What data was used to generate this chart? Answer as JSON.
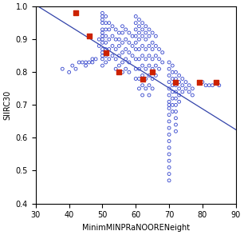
{
  "xlabel": "MinimMINPRaNOORENeight",
  "ylabel": "SIIRC30",
  "xlim": [
    30,
    90
  ],
  "ylim": [
    0.4,
    1.0
  ],
  "xticks": [
    30,
    40,
    50,
    60,
    70,
    80,
    90
  ],
  "yticks": [
    0.4,
    0.5,
    0.6,
    0.7,
    0.8,
    0.9,
    1.0
  ],
  "line_x": [
    30,
    90
  ],
  "line_y": [
    1.005,
    0.625
  ],
  "line_color": "#3344aa",
  "circles_x": [
    38,
    40,
    41,
    42,
    43,
    44,
    45,
    45,
    46,
    47,
    47,
    48,
    49,
    49,
    50,
    50,
    50,
    50,
    50,
    50,
    50,
    50,
    50,
    50,
    50,
    50,
    50,
    50,
    51,
    51,
    51,
    51,
    51,
    51,
    51,
    51,
    52,
    52,
    52,
    52,
    52,
    53,
    53,
    53,
    53,
    54,
    54,
    54,
    54,
    54,
    55,
    55,
    55,
    55,
    55,
    56,
    56,
    56,
    56,
    56,
    56,
    57,
    57,
    57,
    57,
    57,
    58,
    58,
    58,
    58,
    58,
    59,
    59,
    59,
    60,
    60,
    60,
    60,
    60,
    60,
    60,
    60,
    60,
    61,
    61,
    61,
    61,
    61,
    61,
    61,
    61,
    61,
    62,
    62,
    62,
    62,
    62,
    62,
    62,
    62,
    62,
    63,
    63,
    63,
    63,
    63,
    63,
    63,
    63,
    64,
    64,
    64,
    64,
    64,
    64,
    64,
    64,
    65,
    65,
    65,
    65,
    65,
    65,
    65,
    66,
    66,
    66,
    66,
    66,
    67,
    67,
    67,
    68,
    68,
    70,
    70,
    70,
    70,
    70,
    70,
    70,
    70,
    70,
    70,
    70,
    70,
    70,
    70,
    70,
    70,
    70,
    70,
    70,
    70,
    71,
    71,
    71,
    71,
    71,
    71,
    71,
    71,
    72,
    72,
    72,
    72,
    72,
    72,
    72,
    72,
    72,
    72,
    73,
    73,
    73,
    73,
    73,
    74,
    74,
    74,
    75,
    75,
    76,
    76,
    77,
    77,
    80,
    81,
    82,
    83,
    84,
    85
  ],
  "circles_y": [
    0.81,
    0.8,
    0.82,
    0.81,
    0.83,
    0.83,
    0.83,
    0.82,
    0.83,
    0.84,
    0.83,
    0.84,
    0.9,
    0.88,
    0.98,
    0.97,
    0.96,
    0.95,
    0.93,
    0.92,
    0.91,
    0.9,
    0.89,
    0.87,
    0.86,
    0.85,
    0.84,
    0.82,
    0.97,
    0.95,
    0.93,
    0.91,
    0.89,
    0.87,
    0.85,
    0.83,
    0.95,
    0.93,
    0.9,
    0.87,
    0.84,
    0.94,
    0.91,
    0.88,
    0.85,
    0.93,
    0.9,
    0.87,
    0.84,
    0.81,
    0.92,
    0.9,
    0.88,
    0.85,
    0.82,
    0.94,
    0.92,
    0.89,
    0.86,
    0.83,
    0.8,
    0.93,
    0.9,
    0.87,
    0.84,
    0.81,
    0.92,
    0.89,
    0.86,
    0.83,
    0.8,
    0.91,
    0.88,
    0.85,
    0.97,
    0.95,
    0.93,
    0.91,
    0.89,
    0.87,
    0.84,
    0.81,
    0.78,
    0.96,
    0.94,
    0.92,
    0.9,
    0.87,
    0.84,
    0.81,
    0.78,
    0.75,
    0.95,
    0.93,
    0.91,
    0.88,
    0.85,
    0.82,
    0.79,
    0.76,
    0.73,
    0.94,
    0.92,
    0.9,
    0.87,
    0.84,
    0.81,
    0.78,
    0.75,
    0.93,
    0.91,
    0.88,
    0.85,
    0.82,
    0.79,
    0.76,
    0.73,
    0.92,
    0.89,
    0.87,
    0.84,
    0.81,
    0.78,
    0.75,
    0.91,
    0.88,
    0.85,
    0.82,
    0.79,
    0.87,
    0.84,
    0.81,
    0.86,
    0.83,
    0.83,
    0.81,
    0.79,
    0.77,
    0.75,
    0.73,
    0.71,
    0.69,
    0.67,
    0.65,
    0.63,
    0.61,
    0.59,
    0.57,
    0.55,
    0.53,
    0.51,
    0.49,
    0.47,
    0.7,
    0.82,
    0.8,
    0.78,
    0.76,
    0.74,
    0.72,
    0.7,
    0.68,
    0.8,
    0.78,
    0.76,
    0.74,
    0.72,
    0.7,
    0.68,
    0.66,
    0.64,
    0.62,
    0.79,
    0.77,
    0.75,
    0.73,
    0.71,
    0.78,
    0.76,
    0.74,
    0.77,
    0.75,
    0.76,
    0.74,
    0.75,
    0.73,
    0.77,
    0.76,
    0.76,
    0.76,
    0.77,
    0.76
  ],
  "squares_x": [
    42,
    46,
    51,
    55,
    62,
    65,
    72,
    79,
    84
  ],
  "squares_y": [
    0.98,
    0.91,
    0.86,
    0.8,
    0.78,
    0.8,
    0.77,
    0.77,
    0.77
  ],
  "circle_color": "#3344cc",
  "square_color": "#cc2200",
  "circle_size": 8,
  "circle_lw": 0.6,
  "square_size": 25,
  "tick_fontsize": 7,
  "label_fontsize": 7
}
